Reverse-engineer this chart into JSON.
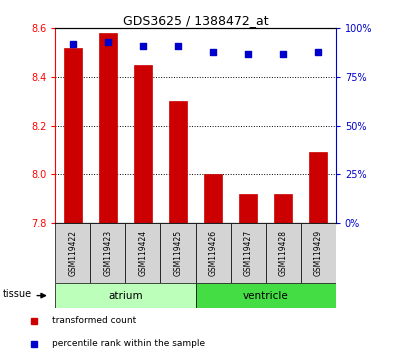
{
  "title": "GDS3625 / 1388472_at",
  "samples": [
    "GSM119422",
    "GSM119423",
    "GSM119424",
    "GSM119425",
    "GSM119426",
    "GSM119427",
    "GSM119428",
    "GSM119429"
  ],
  "transformed_counts": [
    8.52,
    8.58,
    8.45,
    8.3,
    8.0,
    7.92,
    7.92,
    8.09
  ],
  "percentile_ranks": [
    92,
    93,
    91,
    91,
    88,
    87,
    87,
    88
  ],
  "ymin": 7.8,
  "ymax": 8.6,
  "yticks": [
    7.8,
    8.0,
    8.2,
    8.4,
    8.6
  ],
  "right_yticks": [
    0,
    25,
    50,
    75,
    100
  ],
  "right_yticklabels": [
    "0%",
    "25%",
    "50%",
    "75%",
    "100%"
  ],
  "tissue_groups": [
    {
      "label": "atrium",
      "start": 0,
      "end": 4,
      "color": "#bbffbb"
    },
    {
      "label": "ventricle",
      "start": 4,
      "end": 8,
      "color": "#44dd44"
    }
  ],
  "bar_color": "#cc0000",
  "dot_color": "#0000cc",
  "bar_width": 0.5,
  "tissue_label": "tissue",
  "legend_items": [
    {
      "label": "transformed count",
      "color": "#cc0000"
    },
    {
      "label": "percentile rank within the sample",
      "color": "#0000cc"
    }
  ],
  "fig_width": 3.95,
  "fig_height": 3.54,
  "dpi": 100
}
